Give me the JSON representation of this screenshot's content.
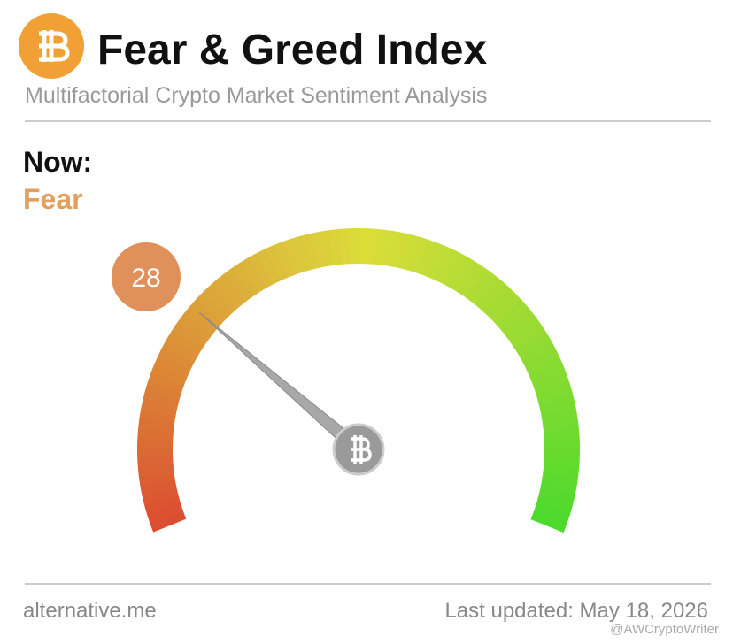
{
  "chart_data": {
    "type": "gauge",
    "title": "Fear & Greed Index",
    "subtitle": "Multifactorial Crypto Market Sentiment Analysis",
    "now_label": "Now:",
    "status": "Fear",
    "value": 28,
    "ylim": [
      0,
      100
    ],
    "source": "alternative.me",
    "updated": "Last updated: May 18, 2026",
    "watermark": "@AWCryptoWriter"
  }
}
